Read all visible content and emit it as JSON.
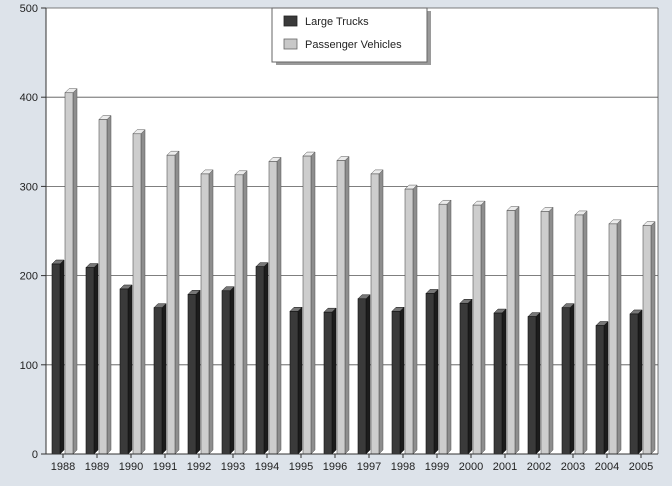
{
  "chart_data": {
    "type": "bar",
    "categories": [
      "1988",
      "1989",
      "1990",
      "1991",
      "1992",
      "1993",
      "1994",
      "1995",
      "1996",
      "1997",
      "1998",
      "1999",
      "2000",
      "2001",
      "2002",
      "2003",
      "2004",
      "2005"
    ],
    "series": [
      {
        "name": "Large Trucks",
        "values": [
          213,
          209,
          185,
          164,
          179,
          183,
          210,
          160,
          159,
          174,
          160,
          180,
          169,
          158,
          154,
          164,
          144,
          157
        ],
        "color": "#3a3a3a"
      },
      {
        "name": "Passenger Vehicles",
        "values": [
          405,
          375,
          359,
          335,
          314,
          313,
          328,
          334,
          329,
          314,
          297,
          280,
          279,
          273,
          272,
          268,
          258,
          256
        ],
        "color": "#c8c8c8"
      }
    ],
    "y_ticks": [
      "0",
      "100",
      "200",
      "300",
      "400",
      "500"
    ],
    "ylim": [
      0,
      500
    ],
    "grid": true,
    "legend_position": "top-center"
  }
}
